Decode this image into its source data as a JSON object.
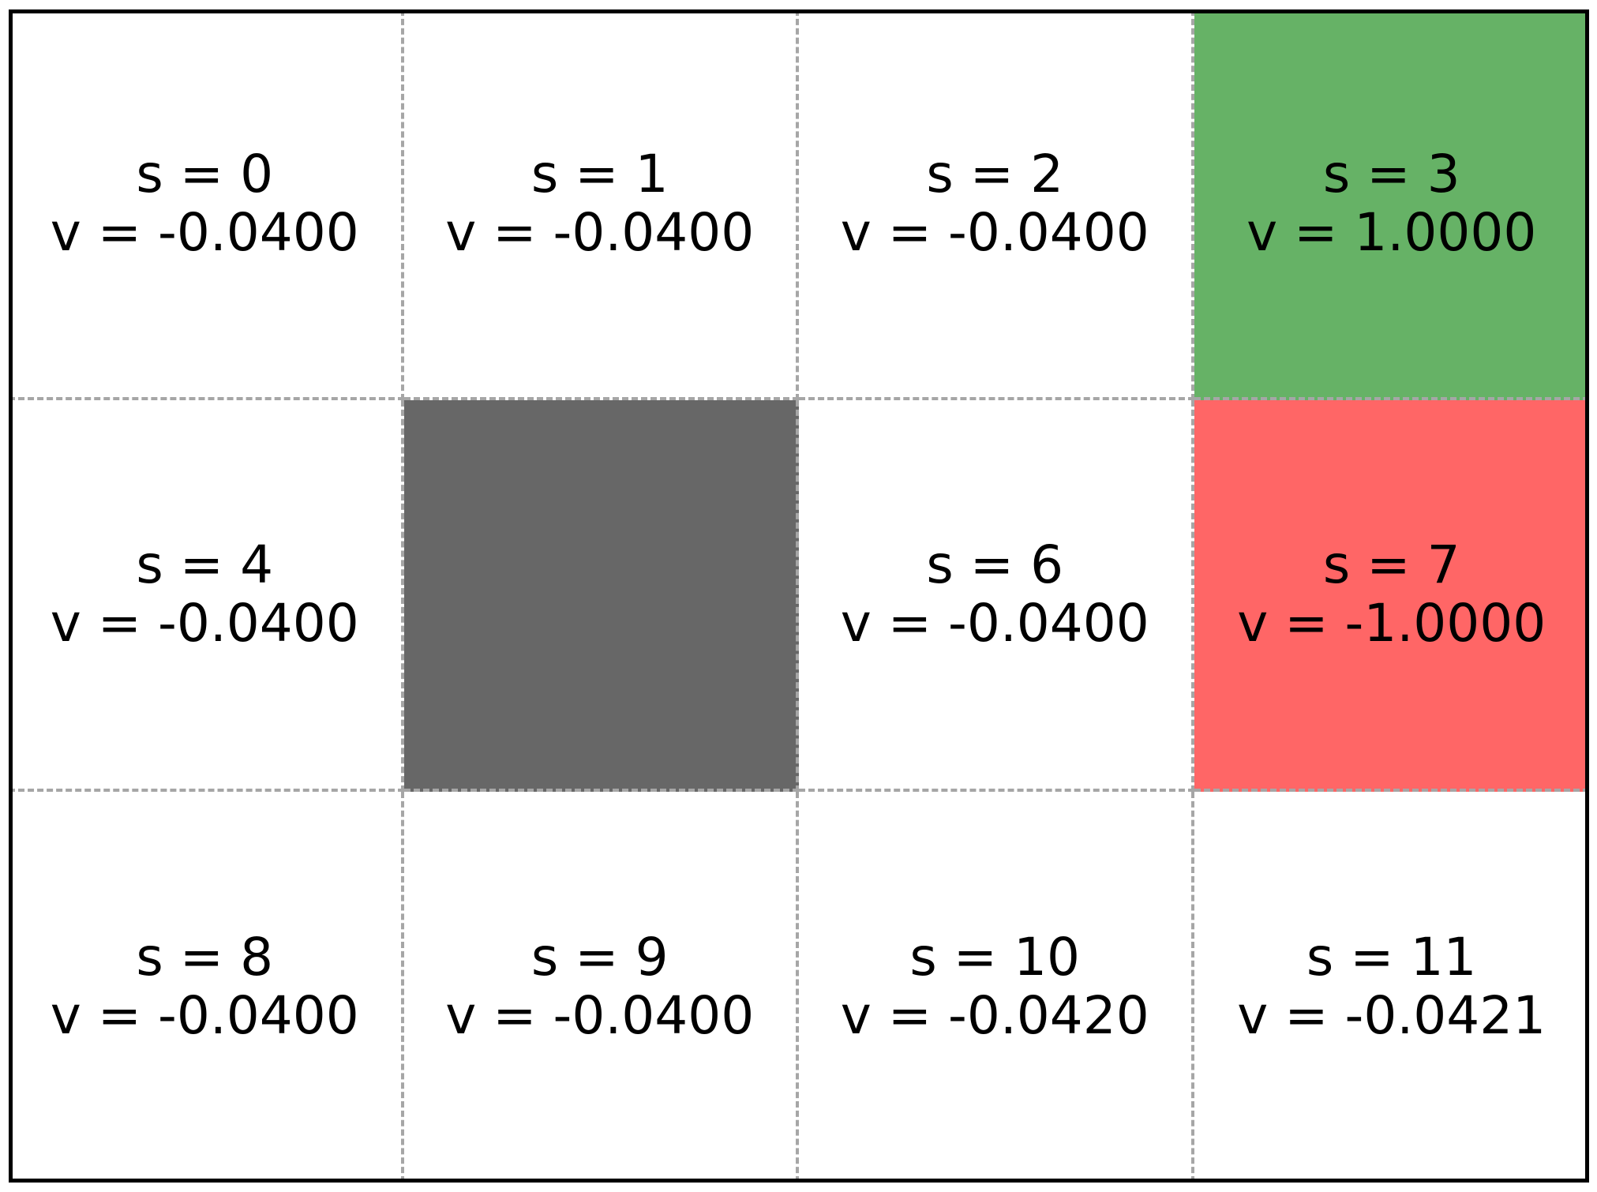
{
  "grid": {
    "rows": 3,
    "cols": 4,
    "colors": {
      "normal": "#ffffff",
      "goal": "#66b266",
      "pit": "#ff6666",
      "wall": "#676767"
    },
    "cells": [
      {
        "kind": "normal",
        "state": "s = 0",
        "value": "v = -0.0400"
      },
      {
        "kind": "normal",
        "state": "s = 1",
        "value": "v = -0.0400"
      },
      {
        "kind": "normal",
        "state": "s = 2",
        "value": "v = -0.0400"
      },
      {
        "kind": "goal",
        "state": "s = 3",
        "value": "v = 1.0000"
      },
      {
        "kind": "normal",
        "state": "s = 4",
        "value": "v = -0.0400"
      },
      {
        "kind": "wall",
        "state": "",
        "value": ""
      },
      {
        "kind": "normal",
        "state": "s = 6",
        "value": "v = -0.0400"
      },
      {
        "kind": "pit",
        "state": "s = 7",
        "value": "v = -1.0000"
      },
      {
        "kind": "normal",
        "state": "s = 8",
        "value": "v = -0.0400"
      },
      {
        "kind": "normal",
        "state": "s = 9",
        "value": "v = -0.0400"
      },
      {
        "kind": "normal",
        "state": "s = 10",
        "value": "v = -0.0420"
      },
      {
        "kind": "normal",
        "state": "s = 11",
        "value": "v = -0.0421"
      }
    ]
  }
}
